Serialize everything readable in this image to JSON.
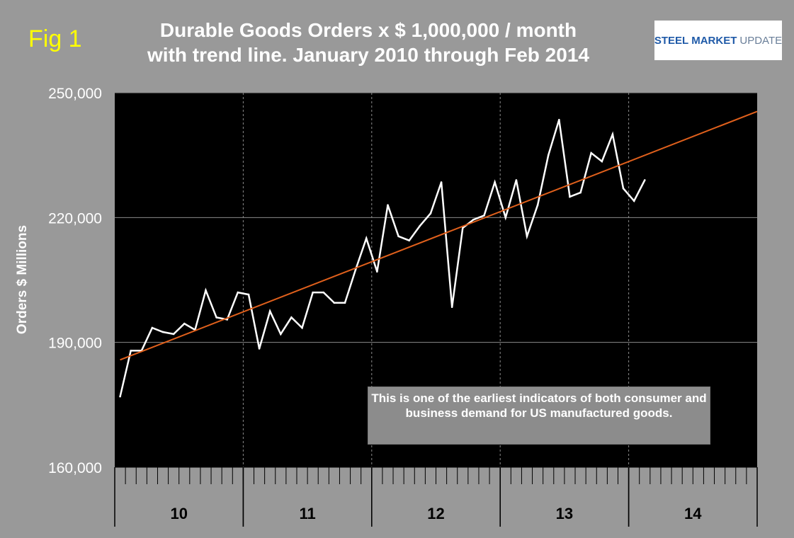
{
  "fig_label": "Fig 1",
  "title_line1": "Durable Goods Orders x $ 1,000,000 / month",
  "title_line2": "with trend line.  January 2010 through Feb 2014",
  "logo": {
    "part1": "STEEL",
    "part2": "MARKET",
    "part3": "UPDATE"
  },
  "annotation": "This is one of the earliest indicators of both consumer and business demand for US manufactured goods.",
  "chart_data": {
    "type": "line",
    "title": "Durable Goods Orders x $ 1,000,000 / month with trend line.  January 2010 through Feb 2014",
    "ylabel": "Orders $ Millions",
    "xlabel": "",
    "ylim": [
      160000,
      250000
    ],
    "yticks": [
      160000,
      190000,
      220000,
      250000
    ],
    "ytick_labels": [
      "160,000",
      "190,000",
      "220,000",
      "250,000"
    ],
    "x_range_months": [
      0,
      60
    ],
    "year_groups": [
      {
        "label": "10",
        "start": 0,
        "end": 12
      },
      {
        "label": "11",
        "start": 12,
        "end": 24
      },
      {
        "label": "12",
        "start": 24,
        "end": 36
      },
      {
        "label": "13",
        "start": 36,
        "end": 48
      },
      {
        "label": "14",
        "start": 48,
        "end": 60
      }
    ],
    "grid": "horizontal gridlines at y ticks, dashed vertical lines at year boundaries",
    "series": [
      {
        "name": "Durable Goods Orders",
        "color": "#ffffff",
        "x": [
          0.5,
          1.5,
          2.5,
          3.5,
          4.5,
          5.5,
          6.5,
          7.5,
          8.5,
          9.5,
          10.5,
          11.5,
          12.5,
          13.5,
          14.5,
          15.5,
          16.5,
          17.5,
          18.5,
          19.5,
          20.5,
          21.5,
          22.5,
          23.5,
          24.5,
          25.5,
          26.5,
          27.5,
          28.5,
          29.5,
          30.5,
          31.5,
          32.5,
          33.5,
          34.5,
          35.5,
          36.5,
          37.5,
          38.5,
          39.5,
          40.5,
          41.5,
          42.5,
          43.5,
          44.5,
          45.5,
          46.5,
          47.5,
          48.5,
          49.5
        ],
        "values": [
          177000,
          188000,
          188000,
          193500,
          192500,
          192000,
          194500,
          193000,
          202500,
          196000,
          195500,
          202000,
          201500,
          188500,
          197500,
          192000,
          196000,
          193500,
          202000,
          202000,
          199500,
          199500,
          207500,
          215000,
          207000,
          223000,
          215500,
          214500,
          218000,
          221000,
          228500,
          198500,
          217500,
          219500,
          220500,
          228500,
          220000,
          229000,
          215500,
          223000,
          235000,
          243500,
          225000,
          226000,
          235500,
          233500,
          240000,
          227000,
          224000,
          229000
        ]
      },
      {
        "name": "Trend line",
        "color": "#e0601c",
        "x": [
          0.5,
          60
        ],
        "values": [
          185800,
          245500
        ]
      }
    ]
  }
}
